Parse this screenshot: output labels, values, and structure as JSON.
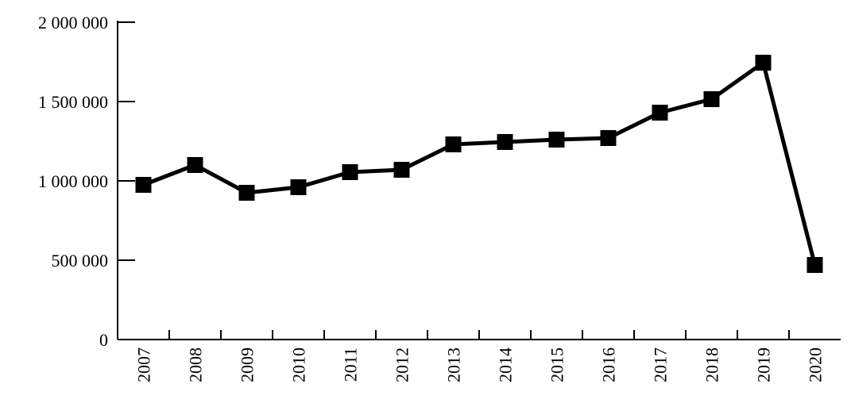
{
  "chart_data": {
    "type": "line",
    "categories": [
      "2007",
      "2008",
      "2009",
      "2010",
      "2011",
      "2012",
      "2013",
      "2014",
      "2015",
      "2016",
      "2017",
      "2018",
      "2019",
      "2020"
    ],
    "values": [
      975000,
      1100000,
      925000,
      960000,
      1055000,
      1070000,
      1230000,
      1245000,
      1260000,
      1270000,
      1430000,
      1515000,
      1745000,
      470000
    ],
    "color": "#000000",
    "ylim": [
      0,
      2000000
    ],
    "yticks": [
      0,
      {
        "value": 500000,
        "label": "500 000"
      },
      {
        "value": 1000000,
        "label": "1 000 000"
      },
      {
        "value": 1500000,
        "label": "1 500 000"
      },
      {
        "value": 2000000,
        "label": "2 000 000"
      }
    ],
    "grid": false
  }
}
